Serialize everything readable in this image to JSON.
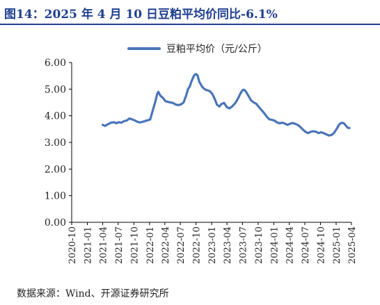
{
  "figure_title": "图14：2025 年 4 月 10 日豆粕平均价同比-6.1%",
  "source_note": "数据来源：Wind、开源证券研究所",
  "colors": {
    "title": "#1f3f8f",
    "series": "#4a74b8",
    "axis": "#000000"
  },
  "chart_data": {
    "type": "line",
    "title": "",
    "xlabel": "",
    "ylabel": "",
    "ylim": [
      0,
      6
    ],
    "yticks": [
      "0.00",
      "1.00",
      "2.00",
      "3.00",
      "4.00",
      "5.00",
      "6.00"
    ],
    "xticks": [
      "2020-10",
      "2021-01",
      "2021-04",
      "2021-07",
      "2021-10",
      "2022-01",
      "2022-04",
      "2022-07",
      "2022-10",
      "2023-01",
      "2023-04",
      "2023-07",
      "2023-10",
      "2024-01",
      "2024-04",
      "2024-07",
      "2024-10",
      "2025-01",
      "2025-04"
    ],
    "grid": false,
    "legend_position": "top",
    "series": [
      {
        "name": "豆粕平均价（元/公斤）",
        "points": [
          [
            "2021-04-01",
            3.66
          ],
          [
            "2021-04-15",
            3.62
          ],
          [
            "2021-05-01",
            3.68
          ],
          [
            "2021-05-20",
            3.74
          ],
          [
            "2021-06-05",
            3.76
          ],
          [
            "2021-06-20",
            3.72
          ],
          [
            "2021-07-05",
            3.76
          ],
          [
            "2021-07-20",
            3.74
          ],
          [
            "2021-08-05",
            3.8
          ],
          [
            "2021-08-20",
            3.82
          ],
          [
            "2021-09-05",
            3.9
          ],
          [
            "2021-09-20",
            3.87
          ],
          [
            "2021-10-05",
            3.83
          ],
          [
            "2021-10-20",
            3.78
          ],
          [
            "2021-11-05",
            3.75
          ],
          [
            "2021-11-20",
            3.77
          ],
          [
            "2021-12-05",
            3.8
          ],
          [
            "2021-12-20",
            3.83
          ],
          [
            "2022-01-05",
            3.86
          ],
          [
            "2022-01-20",
            4.2
          ],
          [
            "2022-02-05",
            4.55
          ],
          [
            "2022-02-15",
            4.82
          ],
          [
            "2022-02-22",
            4.9
          ],
          [
            "2022-03-05",
            4.76
          ],
          [
            "2022-03-20",
            4.68
          ],
          [
            "2022-04-05",
            4.55
          ],
          [
            "2022-04-20",
            4.52
          ],
          [
            "2022-05-05",
            4.5
          ],
          [
            "2022-05-20",
            4.48
          ],
          [
            "2022-06-05",
            4.42
          ],
          [
            "2022-06-20",
            4.4
          ],
          [
            "2022-07-05",
            4.43
          ],
          [
            "2022-07-20",
            4.5
          ],
          [
            "2022-08-05",
            4.78
          ],
          [
            "2022-08-15",
            5.0
          ],
          [
            "2022-08-25",
            5.1
          ],
          [
            "2022-09-05",
            5.3
          ],
          [
            "2022-09-20",
            5.52
          ],
          [
            "2022-10-01",
            5.57
          ],
          [
            "2022-10-10",
            5.52
          ],
          [
            "2022-10-20",
            5.28
          ],
          [
            "2022-11-05",
            5.1
          ],
          [
            "2022-11-20",
            5.0
          ],
          [
            "2022-12-05",
            4.96
          ],
          [
            "2022-12-20",
            4.93
          ],
          [
            "2023-01-05",
            4.82
          ],
          [
            "2023-01-20",
            4.62
          ],
          [
            "2023-02-01",
            4.42
          ],
          [
            "2023-02-15",
            4.35
          ],
          [
            "2023-03-01",
            4.45
          ],
          [
            "2023-03-15",
            4.48
          ],
          [
            "2023-04-01",
            4.32
          ],
          [
            "2023-04-15",
            4.28
          ],
          [
            "2023-05-01",
            4.35
          ],
          [
            "2023-05-20",
            4.48
          ],
          [
            "2023-06-05",
            4.65
          ],
          [
            "2023-06-20",
            4.85
          ],
          [
            "2023-07-01",
            4.96
          ],
          [
            "2023-07-10",
            4.98
          ],
          [
            "2023-07-20",
            4.92
          ],
          [
            "2023-08-05",
            4.75
          ],
          [
            "2023-08-20",
            4.58
          ],
          [
            "2023-09-05",
            4.5
          ],
          [
            "2023-09-20",
            4.45
          ],
          [
            "2023-10-05",
            4.33
          ],
          [
            "2023-10-20",
            4.22
          ],
          [
            "2023-11-05",
            4.1
          ],
          [
            "2023-11-20",
            3.97
          ],
          [
            "2023-12-05",
            3.87
          ],
          [
            "2023-12-20",
            3.85
          ],
          [
            "2024-01-05",
            3.82
          ],
          [
            "2024-01-20",
            3.75
          ],
          [
            "2024-02-05",
            3.72
          ],
          [
            "2024-02-20",
            3.74
          ],
          [
            "2024-03-05",
            3.71
          ],
          [
            "2024-03-20",
            3.66
          ],
          [
            "2024-04-05",
            3.7
          ],
          [
            "2024-04-20",
            3.73
          ],
          [
            "2024-05-05",
            3.7
          ],
          [
            "2024-05-20",
            3.66
          ],
          [
            "2024-06-05",
            3.58
          ],
          [
            "2024-06-20",
            3.48
          ],
          [
            "2024-07-05",
            3.4
          ],
          [
            "2024-07-20",
            3.35
          ],
          [
            "2024-08-05",
            3.4
          ],
          [
            "2024-08-20",
            3.42
          ],
          [
            "2024-09-05",
            3.4
          ],
          [
            "2024-09-20",
            3.35
          ],
          [
            "2024-10-05",
            3.38
          ],
          [
            "2024-10-20",
            3.35
          ],
          [
            "2024-11-05",
            3.3
          ],
          [
            "2024-11-20",
            3.26
          ],
          [
            "2024-12-05",
            3.28
          ],
          [
            "2024-12-20",
            3.36
          ],
          [
            "2025-01-05",
            3.52
          ],
          [
            "2025-01-20",
            3.68
          ],
          [
            "2025-02-05",
            3.74
          ],
          [
            "2025-02-15",
            3.72
          ],
          [
            "2025-02-25",
            3.65
          ],
          [
            "2025-03-10",
            3.55
          ],
          [
            "2025-03-20",
            3.54
          ]
        ]
      }
    ]
  }
}
